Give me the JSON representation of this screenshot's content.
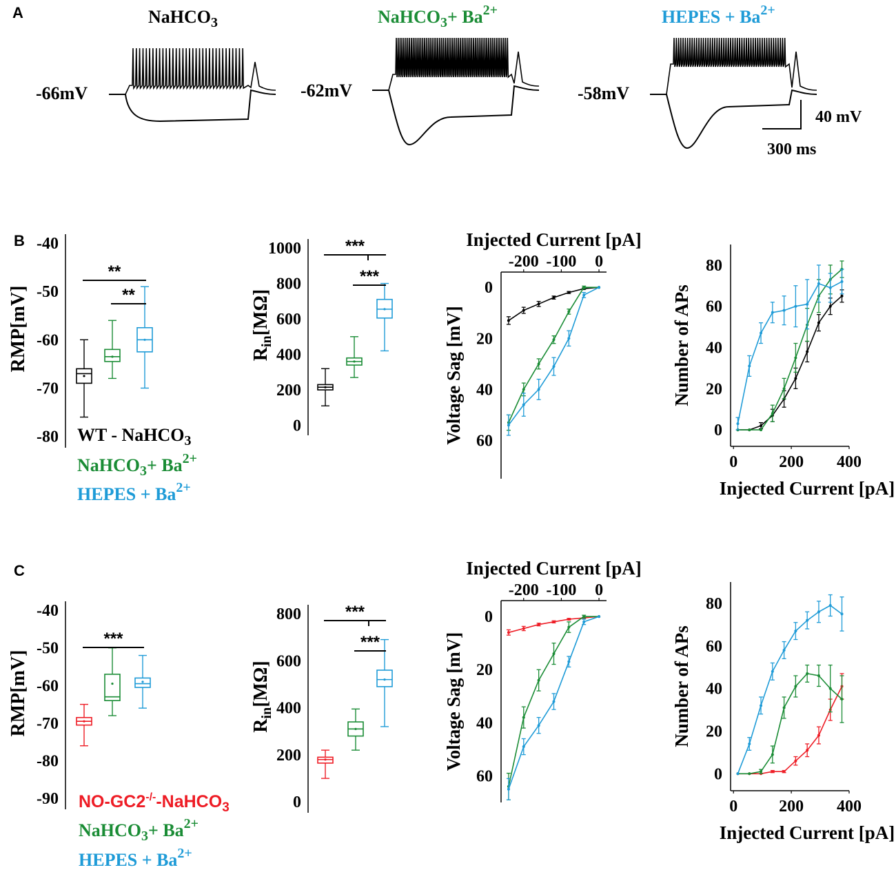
{
  "panels": {
    "a": "A",
    "b": "B",
    "c": "C"
  },
  "colors": {
    "wt": "#000000",
    "ko": "#ee1c25",
    "nahco3_ba": "#1a8c35",
    "hepes_ba": "#1e9bd7"
  },
  "traces": {
    "conditions": [
      {
        "name": "NaHCO",
        "sub": "3",
        "suffix": "",
        "sup": "",
        "rmp": "-66mV",
        "color": "#000000"
      },
      {
        "name": "NaHCO",
        "sub": "3",
        "suffix": "+ Ba",
        "sup": "2+",
        "rmp": "-62mV",
        "color": "#1a8c35"
      },
      {
        "name": "HEPES + Ba",
        "sub": "",
        "suffix": "",
        "sup": "2+",
        "rmp": "-58mV",
        "color": "#1e9bd7"
      }
    ],
    "scale_voltage": "40 mV",
    "scale_time": "300 ms"
  },
  "legend_b": [
    {
      "main": "WT - NaHCO",
      "sub": "3",
      "suffix": "",
      "sup": "",
      "color": "#000000"
    },
    {
      "main": "NaHCO",
      "sub": "3",
      "suffix": "+ Ba",
      "sup": "2+",
      "color": "#1a8c35"
    },
    {
      "main": "HEPES + Ba",
      "sub": "",
      "suffix": "",
      "sup": "2+",
      "color": "#1e9bd7"
    }
  ],
  "legend_c": [
    {
      "main": "NO-GC2",
      "sup": "-/-",
      "rest": "-NaHCO",
      "sub": "3",
      "color": "#ee1c25"
    },
    {
      "main": "NaHCO",
      "sub": "3",
      "suffix": "+ Ba",
      "sup": "2+",
      "color": "#1a8c35"
    },
    {
      "main": "HEPES + Ba",
      "sub": "",
      "suffix": "",
      "sup": "2+",
      "color": "#1e9bd7"
    }
  ],
  "chart_data": [
    {
      "id": "b_rmp",
      "type": "box",
      "ylabel": "RMP[mV]",
      "ylim": [
        -85,
        -35
      ],
      "yticks": [
        -40,
        -50,
        -60,
        -70,
        -80
      ],
      "boxes": [
        {
          "group": "WT - NaHCO3",
          "color": "#000000",
          "min": -76,
          "q1": -69,
          "median": -67,
          "q3": -66,
          "max": -60,
          "mean": -67.5
        },
        {
          "group": "NaHCO3 + Ba2+",
          "color": "#1a8c35",
          "min": -68,
          "q1": -64.5,
          "median": -63.5,
          "q3": -62,
          "max": -56,
          "mean": -63.5
        },
        {
          "group": "HEPES + Ba2+",
          "color": "#1e9bd7",
          "min": -70,
          "q1": -62.5,
          "median": -60,
          "q3": -57.5,
          "max": -49,
          "mean": -60
        }
      ],
      "significance": [
        {
          "from": 0,
          "to": 2,
          "label": "**"
        },
        {
          "from": 1,
          "to": 2,
          "label": "**"
        }
      ]
    },
    {
      "id": "b_rin",
      "type": "box",
      "ylabel": "R",
      "ylabel_sub": "in",
      "ylabel_unit": "[MΩ]",
      "ylim": [
        -40,
        1000
      ],
      "yticks": [
        1000,
        800,
        600,
        400,
        200,
        0
      ],
      "boxes": [
        {
          "group": "WT - NaHCO3",
          "color": "#000000",
          "min": 110,
          "q1": 200,
          "median": 215,
          "q3": 230,
          "max": 320,
          "mean": 215
        },
        {
          "group": "NaHCO3 + Ba2+",
          "color": "#1a8c35",
          "min": 270,
          "q1": 340,
          "median": 360,
          "q3": 380,
          "max": 500,
          "mean": 360
        },
        {
          "group": "HEPES + Ba2+",
          "color": "#1e9bd7",
          "min": 420,
          "q1": 605,
          "median": 655,
          "q3": 710,
          "max": 800,
          "mean": 655
        }
      ],
      "significance": [
        {
          "from": 0,
          "to": 2,
          "label": "***"
        },
        {
          "from": 1,
          "to": 2,
          "label": "***"
        }
      ]
    },
    {
      "id": "b_sag",
      "type": "line",
      "xlabel": "Injected Current",
      "xunit": "[pA]",
      "ylabel": "Voltage Sag  [mV]",
      "xlim": [
        -260,
        20
      ],
      "ylim": [
        -6,
        75
      ],
      "xticks": [
        -200,
        -100,
        0
      ],
      "yticks": [
        0,
        20,
        40,
        60
      ],
      "y_inverted": true,
      "series": [
        {
          "name": "WT - NaHCO3",
          "color": "#000000",
          "x": [
            -240,
            -200,
            -160,
            -120,
            -80,
            -40,
            0
          ],
          "y": [
            13,
            9,
            6.5,
            4,
            2,
            0.5,
            0
          ],
          "err": [
            1.5,
            1.2,
            1,
            0.6,
            0.4,
            0.3,
            0
          ]
        },
        {
          "name": "NaHCO3 + Ba2+",
          "color": "#1a8c35",
          "x": [
            -240,
            -200,
            -160,
            -120,
            -80,
            -40,
            0
          ],
          "y": [
            53,
            40,
            30,
            20.5,
            9.5,
            0,
            0
          ],
          "err": [
            3,
            2.5,
            2,
            1.5,
            1,
            0.5,
            0
          ]
        },
        {
          "name": "HEPES + Ba2+",
          "color": "#1e9bd7",
          "x": [
            -240,
            -200,
            -160,
            -120,
            -80,
            -40,
            0
          ],
          "y": [
            54,
            46,
            40,
            31,
            20,
            3,
            0
          ],
          "err": [
            4,
            4.5,
            4,
            3.5,
            3,
            1,
            0
          ]
        }
      ]
    },
    {
      "id": "b_aps",
      "type": "line",
      "xlabel": "Injected Current",
      "xunit": "[pA]",
      "ylabel": "Number of APs",
      "xlim": [
        -10,
        400
      ],
      "ylim": [
        -8,
        90
      ],
      "xticks": [
        0,
        200,
        400
      ],
      "yticks": [
        0,
        20,
        40,
        60,
        80
      ],
      "series": [
        {
          "name": "WT - NaHCO3",
          "color": "#000000",
          "x": [
            15,
            55,
            95,
            135,
            175,
            215,
            255,
            295,
            335,
            375
          ],
          "y": [
            0,
            0,
            2,
            7,
            15,
            25,
            38,
            52,
            60,
            65
          ],
          "err": [
            0,
            0,
            1.5,
            3,
            4,
            5,
            5,
            4,
            4,
            3
          ]
        },
        {
          "name": "NaHCO3 + Ba2+",
          "color": "#1a8c35",
          "x": [
            15,
            55,
            95,
            135,
            175,
            215,
            255,
            295,
            335,
            375
          ],
          "y": [
            0,
            0,
            0,
            8,
            20,
            35,
            51,
            65,
            73,
            78
          ],
          "err": [
            0,
            0,
            0,
            4,
            5,
            7,
            8,
            8,
            7,
            4
          ]
        },
        {
          "name": "HEPES + Ba2+",
          "color": "#1e9bd7",
          "x": [
            15,
            55,
            95,
            135,
            175,
            215,
            255,
            295,
            335,
            375
          ],
          "y": [
            3,
            31,
            47,
            57,
            58,
            60,
            61,
            71,
            69,
            72
          ],
          "err": [
            3,
            5,
            5,
            5,
            7,
            10,
            12,
            9,
            7,
            6
          ]
        }
      ]
    },
    {
      "id": "c_rmp",
      "type": "box",
      "ylabel": "RMP[mV]",
      "ylim": [
        -90,
        -38
      ],
      "yticks": [
        -40,
        -50,
        -60,
        -70,
        -80,
        -90
      ],
      "boxes": [
        {
          "group": "NO-GC2-/- -NaHCO3",
          "color": "#ee1c25",
          "min": -76,
          "q1": -70.5,
          "median": -69.5,
          "q3": -68.5,
          "max": -65,
          "mean": -69.5
        },
        {
          "group": "NaHCO3 + Ba2+",
          "color": "#1a8c35",
          "min": -68,
          "q1": -64,
          "median": -63,
          "q3": -57,
          "max": -50,
          "mean": -59.5
        },
        {
          "group": "HEPES + Ba2+",
          "color": "#1e9bd7",
          "min": -66,
          "q1": -60.5,
          "median": -59.5,
          "q3": -58,
          "max": -52,
          "mean": -59
        }
      ],
      "significance": [
        {
          "from": 0,
          "to": 2,
          "label": "***"
        }
      ]
    },
    {
      "id": "c_rin",
      "type": "box",
      "ylabel": "R",
      "ylabel_sub": "in",
      "ylabel_unit": "[MΩ]",
      "ylim": [
        -30,
        800
      ],
      "yticks": [
        800,
        600,
        400,
        200,
        0
      ],
      "boxes": [
        {
          "group": "NO-GC2-/- -NaHCO3",
          "color": "#ee1c25",
          "min": 100,
          "q1": 165,
          "median": 180,
          "q3": 190,
          "max": 220,
          "mean": 180
        },
        {
          "group": "NaHCO3 + Ba2+",
          "color": "#1a8c35",
          "min": 220,
          "q1": 280,
          "median": 310,
          "q3": 340,
          "max": 395,
          "mean": 310
        },
        {
          "group": "HEPES + Ba2+",
          "color": "#1e9bd7",
          "min": 320,
          "q1": 490,
          "median": 520,
          "q3": 560,
          "max": 690,
          "mean": 520
        }
      ],
      "significance": [
        {
          "from": 0,
          "to": 2,
          "label": "***"
        },
        {
          "from": 1,
          "to": 2,
          "label": "***"
        }
      ]
    },
    {
      "id": "c_sag",
      "type": "line",
      "xlabel": "Injected Current",
      "xunit": "[pA]",
      "ylabel": "Voltage Sag  [mV]",
      "xlim": [
        -260,
        20
      ],
      "ylim": [
        -6,
        70
      ],
      "xticks": [
        -200,
        -100,
        0
      ],
      "yticks": [
        0,
        20,
        40,
        60
      ],
      "y_inverted": true,
      "series": [
        {
          "name": "NO-GC2-/- -NaHCO3",
          "color": "#ee1c25",
          "x": [
            -240,
            -200,
            -160,
            -120,
            -80,
            -40,
            0
          ],
          "y": [
            6,
            4.5,
            3,
            2,
            1,
            0.5,
            0
          ],
          "err": [
            1,
            0.8,
            0.5,
            0.4,
            0.3,
            0.2,
            0
          ]
        },
        {
          "name": "NaHCO3 + Ba2+",
          "color": "#1a8c35",
          "x": [
            -240,
            -200,
            -160,
            -120,
            -80,
            -40,
            0
          ],
          "y": [
            64,
            38,
            24,
            14,
            4,
            0,
            0
          ],
          "err": [
            5,
            4,
            4,
            4,
            2,
            0.5,
            0
          ]
        },
        {
          "name": "HEPES + Ba2+",
          "color": "#1e9bd7",
          "x": [
            -240,
            -200,
            -160,
            -120,
            -80,
            -40,
            0
          ],
          "y": [
            65,
            49,
            41,
            32,
            17,
            2,
            0
          ],
          "err": [
            4,
            3,
            3,
            3,
            2,
            1,
            0
          ]
        }
      ]
    },
    {
      "id": "c_aps",
      "type": "line",
      "xlabel": "Injected Current",
      "xunit": "[pA]",
      "ylabel": "Number of APs",
      "xlim": [
        -10,
        400
      ],
      "ylim": [
        -8,
        90
      ],
      "xticks": [
        0,
        200,
        400
      ],
      "yticks": [
        0,
        20,
        40,
        60,
        80
      ],
      "series": [
        {
          "name": "NO-GC2-/- -NaHCO3",
          "color": "#ee1c25",
          "x": [
            15,
            55,
            95,
            135,
            175,
            215,
            255,
            295,
            335,
            375
          ],
          "y": [
            0,
            0,
            0,
            1,
            1,
            6,
            11,
            18,
            30,
            41
          ],
          "err": [
            0,
            0,
            0,
            0.5,
            0.5,
            2,
            3,
            4,
            5,
            6
          ]
        },
        {
          "name": "NaHCO3 + Ba2+",
          "color": "#1a8c35",
          "x": [
            15,
            55,
            95,
            135,
            175,
            215,
            255,
            295,
            335,
            375
          ],
          "y": [
            0,
            0,
            1,
            9,
            31,
            41,
            47,
            46,
            40,
            35
          ],
          "err": [
            0,
            0,
            1,
            4,
            5,
            5,
            4,
            5,
            11,
            11
          ]
        },
        {
          "name": "HEPES + Ba2+",
          "color": "#1e9bd7",
          "x": [
            15,
            55,
            95,
            135,
            175,
            215,
            255,
            295,
            335,
            375
          ],
          "y": [
            0,
            14,
            32,
            48,
            58,
            67,
            72,
            76,
            79,
            75
          ],
          "err": [
            0,
            3,
            4,
            4,
            4,
            4,
            4,
            5,
            5,
            8
          ]
        }
      ]
    }
  ]
}
